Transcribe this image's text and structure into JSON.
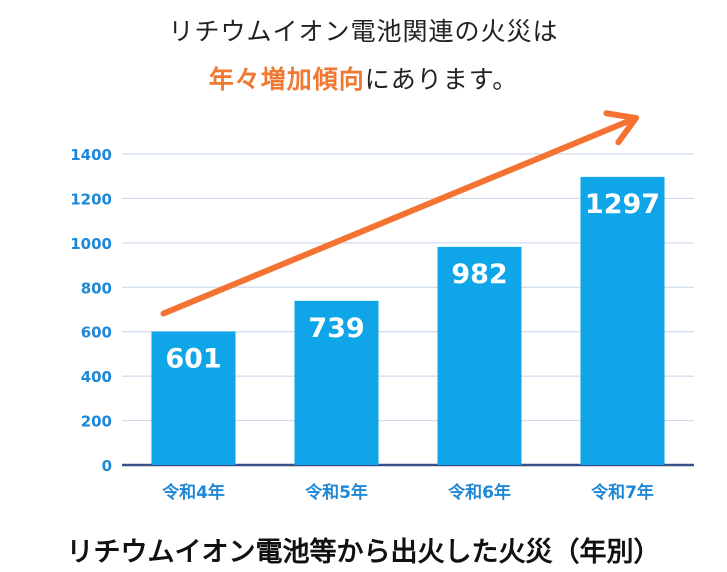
{
  "headline": {
    "line1": "リチウムイオン電池関連の火災は",
    "line2_highlight": "年々増加傾向",
    "line2_rest": "にあります。"
  },
  "caption": "リチウムイオン電池等から出火した火災（年別）",
  "colors": {
    "bar": "#0EA5E9",
    "arrow": "#F47332",
    "highlight": "#F07830",
    "axis_label": "#1E88D6",
    "grid": "#CFDCEC",
    "baseline": "#3A4E8A"
  },
  "chart_data": {
    "type": "bar",
    "categories": [
      "令和4年",
      "令和5年",
      "令和6年",
      "令和7年"
    ],
    "values": [
      601,
      739,
      982,
      1297
    ],
    "data_labels": [
      "601",
      "739",
      "982",
      "1297"
    ],
    "ylim": [
      0,
      1400
    ],
    "yticks": [
      0,
      200,
      400,
      600,
      800,
      1000,
      1200,
      1400
    ],
    "grid": true,
    "trend_arrow": true
  }
}
